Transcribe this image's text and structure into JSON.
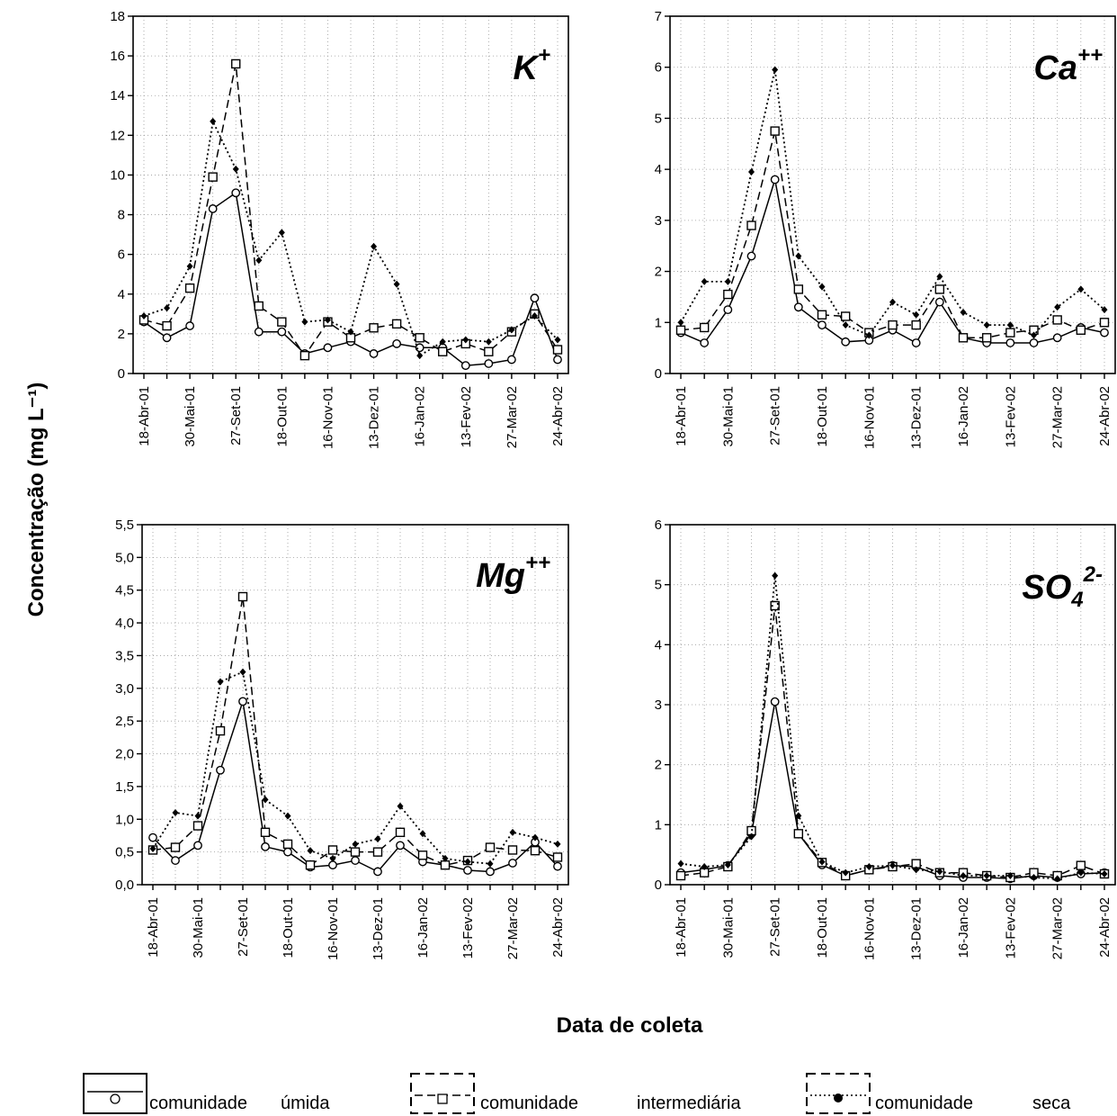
{
  "figure": {
    "ylabel": "Concentração (mg L⁻¹)",
    "xlabel": "Data de coleta"
  },
  "legend": [
    {
      "line_style": "solid",
      "marker": "circle",
      "words": [
        "comunidade",
        "úmida"
      ]
    },
    {
      "line_style": "dashed",
      "marker": "square",
      "words": [
        "comunidade",
        "intermediária"
      ]
    },
    {
      "line_style": "dotted",
      "marker": "diamond",
      "words": [
        "comunidade",
        "seca"
      ]
    }
  ],
  "chart_data": [
    {
      "type": "line",
      "label_base": "K",
      "label_sup": "+",
      "x_labels": [
        "18-Abr-01",
        "30-Mai-01",
        "27-Set-01",
        "18-Out-01",
        "16-Nov-01",
        "13-Dez-01",
        "16-Jan-02",
        "13-Fev-02",
        "27-Mar-02",
        "24-Abr-02"
      ],
      "ylim": [
        0,
        18
      ],
      "yticks": [
        0,
        2,
        4,
        6,
        8,
        10,
        12,
        14,
        16,
        18
      ],
      "ytick_labels": [
        "0",
        "2",
        "4",
        "6",
        "8",
        "10",
        "12",
        "14",
        "16",
        "18"
      ],
      "grid": true,
      "series": [
        {
          "name": "comunidade úmida",
          "style": "solid",
          "marker": "circle",
          "values": [
            2.6,
            1.8,
            2.4,
            8.3,
            9.1,
            2.1,
            2.1,
            1.0,
            1.3,
            1.6,
            1.0,
            1.5,
            1.3,
            1.3,
            0.4,
            0.5,
            0.7,
            3.8,
            0.7
          ]
        },
        {
          "name": "comunidade intermediária",
          "style": "dashed",
          "marker": "square",
          "values": [
            2.7,
            2.4,
            4.3,
            9.9,
            15.6,
            3.4,
            2.6,
            0.9,
            2.6,
            1.8,
            2.3,
            2.5,
            1.8,
            1.1,
            1.5,
            1.1,
            2.1,
            3.0,
            1.2
          ]
        },
        {
          "name": "comunidade seca",
          "style": "dotted",
          "marker": "diamond",
          "values": [
            2.9,
            3.3,
            5.4,
            12.7,
            10.3,
            5.7,
            7.1,
            2.6,
            2.7,
            2.1,
            6.4,
            4.5,
            0.9,
            1.6,
            1.7,
            1.6,
            2.2,
            2.9,
            1.7
          ]
        }
      ]
    },
    {
      "type": "line",
      "label_base": "Ca",
      "label_sup": "++",
      "x_labels": [
        "18-Abr-01",
        "30-Mai-01",
        "27-Set-01",
        "18-Out-01",
        "16-Nov-01",
        "13-Dez-01",
        "16-Jan-02",
        "13-Fev-02",
        "27-Mar-02",
        "24-Abr-02"
      ],
      "ylim": [
        0,
        7
      ],
      "yticks": [
        0,
        1,
        2,
        3,
        4,
        5,
        6,
        7
      ],
      "ytick_labels": [
        "0",
        "1",
        "2",
        "3",
        "4",
        "5",
        "6",
        "7"
      ],
      "grid": true,
      "series": [
        {
          "name": "comunidade úmida",
          "style": "solid",
          "marker": "circle",
          "values": [
            0.8,
            0.6,
            1.25,
            2.3,
            3.8,
            1.3,
            0.95,
            0.62,
            0.65,
            0.85,
            0.6,
            1.4,
            0.7,
            0.6,
            0.6,
            0.6,
            0.7,
            0.9,
            0.8
          ]
        },
        {
          "name": "comunidade intermediária",
          "style": "dashed",
          "marker": "square",
          "values": [
            0.85,
            0.9,
            1.55,
            2.9,
            4.75,
            1.65,
            1.15,
            1.12,
            0.8,
            0.95,
            0.95,
            1.65,
            0.7,
            0.7,
            0.8,
            0.85,
            1.05,
            0.85,
            1.0
          ]
        },
        {
          "name": "comunidade seca",
          "style": "dotted",
          "marker": "diamond",
          "values": [
            1.0,
            1.8,
            1.8,
            3.95,
            5.95,
            2.3,
            1.7,
            0.95,
            0.75,
            1.4,
            1.15,
            1.9,
            1.2,
            0.95,
            0.95,
            0.75,
            1.3,
            1.65,
            1.25
          ]
        }
      ]
    },
    {
      "type": "line",
      "label_base": "Mg",
      "label_sup": "++",
      "x_labels": [
        "18-Abr-01",
        "30-Mai-01",
        "27-Set-01",
        "18-Out-01",
        "16-Nov-01",
        "13-Dez-01",
        "16-Jan-02",
        "13-Fev-02",
        "27-Mar-02",
        "24-Abr-02"
      ],
      "ylim": [
        0,
        5.5
      ],
      "yticks": [
        0,
        0.5,
        1,
        1.5,
        2,
        2.5,
        3,
        3.5,
        4,
        4.5,
        5,
        5.5
      ],
      "ytick_labels": [
        "0,0",
        "0,5",
        "1,0",
        "1,5",
        "2,0",
        "2,5",
        "3,0",
        "3,5",
        "4,0",
        "4,5",
        "5,0",
        "5,5"
      ],
      "grid": true,
      "series": [
        {
          "name": "comunidade úmida",
          "style": "solid",
          "marker": "circle",
          "values": [
            0.72,
            0.37,
            0.6,
            1.75,
            2.8,
            0.58,
            0.5,
            0.27,
            0.3,
            0.37,
            0.2,
            0.6,
            0.35,
            0.3,
            0.22,
            0.2,
            0.33,
            0.65,
            0.28
          ]
        },
        {
          "name": "comunidade intermediária",
          "style": "dashed",
          "marker": "square",
          "values": [
            0.53,
            0.57,
            0.9,
            2.35,
            4.4,
            0.8,
            0.62,
            0.3,
            0.53,
            0.5,
            0.5,
            0.8,
            0.45,
            0.3,
            0.37,
            0.57,
            0.53,
            0.52,
            0.42
          ]
        },
        {
          "name": "comunidade seca",
          "style": "dotted",
          "marker": "diamond",
          "values": [
            0.55,
            1.1,
            1.05,
            3.1,
            3.25,
            1.3,
            1.05,
            0.52,
            0.4,
            0.62,
            0.7,
            1.2,
            0.78,
            0.4,
            0.35,
            0.32,
            0.8,
            0.72,
            0.62
          ]
        }
      ]
    },
    {
      "type": "line",
      "label_base": "SO",
      "label_sub": "4",
      "label_sup": "2-",
      "x_labels": [
        "18-Abr-01",
        "30-Mai-01",
        "27-Set-01",
        "18-Out-01",
        "16-Nov-01",
        "13-Dez-01",
        "16-Jan-02",
        "13-Fev-02",
        "27-Mar-02",
        "24-Abr-02"
      ],
      "ylim": [
        0,
        6
      ],
      "yticks": [
        0,
        1,
        2,
        3,
        4,
        5,
        6
      ],
      "ytick_labels": [
        "0",
        "1",
        "2",
        "3",
        "4",
        "5",
        "6"
      ],
      "grid": true,
      "series": [
        {
          "name": "comunidade úmida",
          "style": "solid",
          "marker": "circle",
          "values": [
            0.2,
            0.25,
            0.32,
            0.85,
            3.05,
            0.85,
            0.33,
            0.15,
            0.25,
            0.32,
            0.3,
            0.15,
            0.12,
            0.12,
            0.1,
            0.15,
            0.12,
            0.18,
            0.2
          ]
        },
        {
          "name": "comunidade intermediária",
          "style": "dashed",
          "marker": "square",
          "values": [
            0.15,
            0.2,
            0.3,
            0.9,
            4.65,
            0.85,
            0.37,
            0.15,
            0.25,
            0.3,
            0.35,
            0.2,
            0.2,
            0.15,
            0.12,
            0.2,
            0.15,
            0.32,
            0.18
          ]
        },
        {
          "name": "comunidade seca",
          "style": "dotted",
          "marker": "diamond",
          "values": [
            0.35,
            0.3,
            0.33,
            0.8,
            5.15,
            1.15,
            0.38,
            0.2,
            0.3,
            0.32,
            0.25,
            0.22,
            0.15,
            0.15,
            0.15,
            0.12,
            0.1,
            0.2,
            0.18
          ]
        }
      ]
    }
  ]
}
